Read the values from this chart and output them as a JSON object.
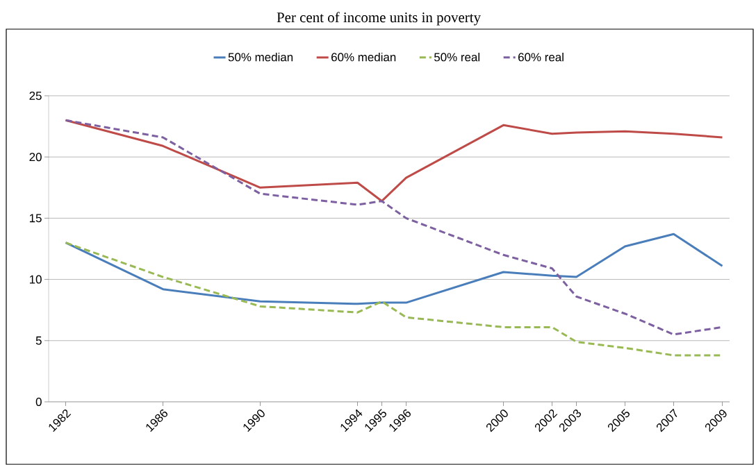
{
  "chart_data": {
    "type": "line",
    "title": "Per cent of income units in poverty",
    "x": [
      1982,
      1986,
      1990,
      1994,
      1995,
      1996,
      2000,
      2002,
      2003,
      2005,
      2007,
      2009
    ],
    "series": [
      {
        "name": "50% median",
        "color": "#4a7ebb",
        "line_style": "solid",
        "values": [
          13.0,
          9.2,
          8.2,
          8.0,
          8.1,
          8.1,
          10.6,
          10.3,
          10.2,
          12.7,
          13.7,
          11.1
        ]
      },
      {
        "name": "60% median",
        "color": "#be4b48",
        "line_style": "solid",
        "values": [
          23.0,
          20.9,
          17.5,
          17.9,
          16.4,
          18.3,
          22.6,
          21.9,
          22.0,
          22.1,
          21.9,
          21.6
        ]
      },
      {
        "name": "50% real",
        "color": "#98b954",
        "line_style": "dashed",
        "values": [
          13.0,
          10.2,
          7.8,
          7.3,
          8.2,
          6.9,
          6.1,
          6.1,
          4.9,
          4.4,
          3.8,
          3.8
        ]
      },
      {
        "name": "60% real",
        "color": "#7d60a0",
        "line_style": "dashed",
        "values": [
          23.0,
          21.6,
          17.0,
          16.1,
          16.4,
          15.0,
          12.0,
          10.9,
          8.6,
          7.2,
          5.5,
          6.1
        ]
      }
    ],
    "xlim": [
      1981.3,
      2009.3
    ],
    "xticks": [
      1982,
      1986,
      1990,
      1994,
      1995,
      1996,
      2000,
      2002,
      2003,
      2005,
      2007,
      2009
    ],
    "ylim": [
      0,
      25
    ],
    "yticks": [
      0,
      5,
      10,
      15,
      20,
      25
    ],
    "grid": "y",
    "legend": "top",
    "marker": "none"
  }
}
